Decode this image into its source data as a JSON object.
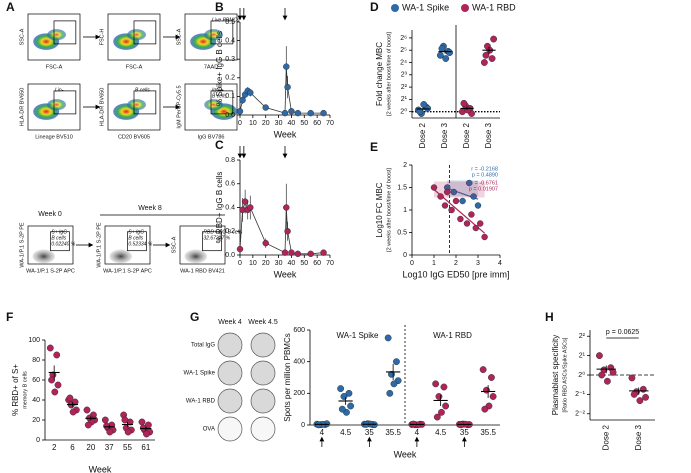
{
  "flow": {
    "panel": "A",
    "plots": [
      {
        "x_label": "FSC-A",
        "y_label": "SSC-A"
      },
      {
        "x_label": "FSC-A",
        "y_label": "FSC-H"
      },
      {
        "x_label": "7AAD",
        "y_label": "SSC-A",
        "gate_label": [
          "Live PBMCs"
        ]
      },
      {
        "x_label": "Lineage BV510",
        "y_label": "HLA-DR BV650",
        "gate_label": [
          "Lin-"
        ]
      },
      {
        "x_label": "CD20 BV605",
        "y_label": "HLA-DR BV650",
        "gate_label": [
          "B cells"
        ]
      },
      {
        "x_label": "IgG BV786",
        "y_label": "IgM PerCP-Cy5.5",
        "gate_label": [
          "IgG+",
          "B cells"
        ]
      },
      {
        "x_label": "WA-1/P.1 S-2P APC",
        "y_label": "WA-1/P.1 S-2P PE",
        "gate_label": [
          "S+ IgG",
          "B cells",
          "0.02240 %"
        ]
      },
      {
        "x_label": "WA-1/P.1 S-2P APC",
        "y_label": "WA-1/P.1 S-2P PE",
        "gate_label": [
          "S+ IgG",
          "B cells",
          "0.52334 %"
        ]
      },
      {
        "x_label": "WA-1 RBD BV421",
        "y_label": "SSC-A",
        "gate_label": [
          "RBD+ IgG B cells",
          "32.67327 %"
        ]
      }
    ],
    "weeks": [
      "Week 0",
      "Week 8"
    ]
  },
  "elispot": {
    "columns": [
      "Week 4",
      "Week 4.5"
    ],
    "rows": [
      "Total IgG",
      "WA-1 Spike",
      "WA-1 RBD",
      "OVA"
    ]
  },
  "chart_data": [
    {
      "type": "line",
      "panel": "B",
      "ylabel": "% Spike+ IgG B cells",
      "xlabel": "Week",
      "x": [
        0,
        2,
        4,
        6,
        8,
        20,
        35,
        36,
        37,
        40,
        45,
        55,
        65
      ],
      "series": [
        {
          "color": "#2e6aa8",
          "values": [
            0.02,
            0.08,
            0.11,
            0.13,
            0.12,
            0.04,
            0.01,
            0.26,
            0.15,
            0.02,
            0.01,
            0.01,
            0.01
          ],
          "errors": [
            0.01,
            0.02,
            0.02,
            0.02,
            0.02,
            0.01,
            0.01,
            0.11,
            0.06,
            0.01,
            0.01,
            0.01,
            0.01
          ]
        }
      ],
      "arrows": [
        0,
        3,
        35
      ],
      "xlim": [
        0,
        70
      ],
      "xticks": [
        0,
        10,
        20,
        30,
        40,
        50,
        60,
        70
      ],
      "ylim": [
        0,
        0.5
      ],
      "yticks": [
        {
          "value": 0,
          "label": "0.0"
        },
        0.1,
        0.2,
        0.3,
        0.4,
        0.5
      ]
    },
    {
      "type": "line",
      "panel": "C",
      "ylabel": "% RBD+ IgG B cells",
      "xlabel": "Week",
      "x": [
        0,
        2,
        4,
        6,
        8,
        20,
        35,
        36,
        37,
        40,
        45,
        55,
        65
      ],
      "series": [
        {
          "color": "#b0245a",
          "values": [
            0.05,
            0.38,
            0.45,
            0.38,
            0.4,
            0.1,
            0.02,
            0.4,
            0.2,
            0.02,
            0.01,
            0.01,
            0.02
          ],
          "errors": [
            0.02,
            0.1,
            0.1,
            0.08,
            0.1,
            0.04,
            0.01,
            0.2,
            0.08,
            0.01,
            0.01,
            0.01,
            0.01
          ]
        }
      ],
      "arrows": [
        0,
        3,
        35
      ],
      "xlim": [
        0,
        70
      ],
      "xticks": [
        0,
        10,
        20,
        30,
        40,
        50,
        60,
        70
      ],
      "ylim": [
        0,
        0.8
      ],
      "yticks": [
        {
          "value": 0,
          "label": "0.0"
        },
        0.2,
        0.4,
        0.6,
        0.8
      ]
    },
    {
      "type": "strip",
      "panel": "D",
      "ylabel": "Fold change MBC",
      "ylabel2": "[2 weeks after boost/time of boost]",
      "categories": [
        "Dose 2",
        "Dose 3"
      ],
      "rotate_labels": true,
      "legend": "top",
      "log": true,
      "series": [
        {
          "name": "WA-1 Spike",
          "color": "#2e6aa8",
          "values": [
            [
              1.1,
              1.3,
              0.9,
              1.2,
              1.5,
              1.0
            ],
            [
              24,
              30,
              40,
              28,
              20,
              35
            ]
          ]
        },
        {
          "name": "WA-1 RBD",
          "color": "#b0245a",
          "values": [
            [
              1.0,
              1.2,
              1.4,
              0.9,
              1.1,
              1.6
            ],
            [
              16,
              20,
              40,
              60,
              32,
              24
            ]
          ]
        }
      ],
      "refline": 1,
      "ylim": [
        0.7,
        100
      ],
      "yticks": [
        {
          "value": 1,
          "label": "2⁰"
        },
        {
          "value": 2,
          "label": "2¹"
        },
        {
          "value": 4,
          "label": "2²"
        },
        {
          "value": 8,
          "label": "2³"
        },
        {
          "value": 16,
          "label": "2⁴"
        },
        {
          "value": 32,
          "label": "2⁵"
        },
        {
          "value": 64,
          "label": "2⁶"
        }
      ]
    },
    {
      "type": "scatter",
      "panel": "E",
      "ylabel": "Log10 FC MBC",
      "ylabel2": "[2 weeks after boost/time of boost]",
      "xlabel": "Log10 IgG ED50 [pre imm]",
      "series": [
        {
          "color": "#2e6aa8",
          "r_label": "r = -0.2168",
          "p_label": "p = 0.4890",
          "x": [
            1.6,
            1.9,
            2.3,
            2.6,
            2.8,
            3.0
          ],
          "values": [
            1.5,
            1.4,
            1.2,
            1.6,
            1.3,
            1.1
          ]
        },
        {
          "color": "#b0245a",
          "r_label": "r = -0.6761",
          "p_label": "p = 0.01907",
          "x": [
            1.0,
            1.3,
            1.6,
            1.8,
            2.0,
            2.2,
            2.5,
            2.7,
            2.9,
            3.1,
            3.3,
            1.5
          ],
          "values": [
            1.5,
            1.3,
            1.4,
            1.0,
            1.2,
            0.8,
            0.7,
            0.9,
            0.6,
            0.7,
            0.4,
            1.1
          ]
        }
      ],
      "refline": 1.7,
      "xlim": [
        0,
        4
      ],
      "xticks": [
        0,
        1,
        2,
        3,
        4
      ],
      "ylim": [
        0,
        2
      ],
      "yticks": [
        0,
        0.5,
        1,
        1.5,
        2
      ]
    },
    {
      "type": "strip",
      "panel": "F",
      "ylabel": "% RBD+ of S+",
      "ylabel2": "memory B cells",
      "xlabel": "Week",
      "categories": [
        "2",
        "6",
        "20",
        "37",
        "55",
        "61"
      ],
      "series": [
        {
          "color": "#b0245a",
          "values": [
            [
              92,
              85,
              65,
              55,
              48,
              60
            ],
            [
              40,
              38,
              35,
              30,
              28,
              42
            ],
            [
              30,
              25,
              22,
              20,
              18,
              15
            ],
            [
              20,
              15,
              12,
              10,
              8,
              14
            ],
            [
              25,
              18,
              12,
              10,
              8,
              20
            ],
            [
              18,
              15,
              10,
              8,
              6,
              12
            ]
          ]
        }
      ],
      "ylim": [
        0,
        100
      ],
      "yticks": [
        0,
        20,
        40,
        60,
        80,
        100
      ]
    },
    {
      "type": "strip",
      "panel": "G",
      "ylabel": "Spots per million PBMCs",
      "xlabel": "Week",
      "categories": [
        "4",
        "4.5",
        "35",
        "35.5"
      ],
      "legend": "header",
      "series": [
        {
          "name": "WA-1 Spike",
          "color": "#2e6aa8",
          "values": [
            [
              5,
              3,
              2,
              8,
              4,
              1
            ],
            [
              230,
              200,
              180,
              120,
              80,
              100
            ],
            [
              5,
              3,
              8,
              2,
              6,
              4
            ],
            [
              550,
              400,
              320,
              280,
              260,
              200
            ]
          ]
        },
        {
          "name": "WA-1 RBD",
          "color": "#b0245a",
          "values": [
            [
              3,
              5,
              2,
              4,
              1,
              6
            ],
            [
              260,
              240,
              180,
              120,
              80,
              50
            ],
            [
              4,
              2,
              6,
              3,
              5,
              1
            ],
            [
              350,
              300,
              220,
              180,
              120,
              100
            ]
          ]
        }
      ],
      "ylim": [
        0,
        600
      ],
      "yticks": [
        0,
        200,
        400,
        600
      ]
    },
    {
      "type": "strip",
      "panel": "H",
      "ylabel": "Plasmablast specificity",
      "ylabel2": "[Ratio RBD ASCs/Spike ASCs]",
      "categories": [
        "Dose 2",
        "Dose 3"
      ],
      "rotate_labels": true,
      "log": true,
      "annotation": "p = 0.0625",
      "series": [
        {
          "color": "#b0245a",
          "values": [
            [
              2.0,
              1.3,
              1.2,
              1.1,
              0.8,
              1.0
            ],
            [
              0.9,
              0.6,
              0.55,
              0.45,
              0.4,
              0.5
            ]
          ]
        }
      ],
      "refline": 1,
      "ylim": [
        0.2,
        5
      ],
      "yticks": [
        {
          "value": 0.25,
          "label": "2⁻²"
        },
        {
          "value": 0.5,
          "label": "2⁻¹"
        },
        {
          "value": 1,
          "label": "2⁰"
        },
        {
          "value": 2,
          "label": "2¹"
        },
        {
          "value": 4,
          "label": "2²"
        }
      ]
    }
  ]
}
